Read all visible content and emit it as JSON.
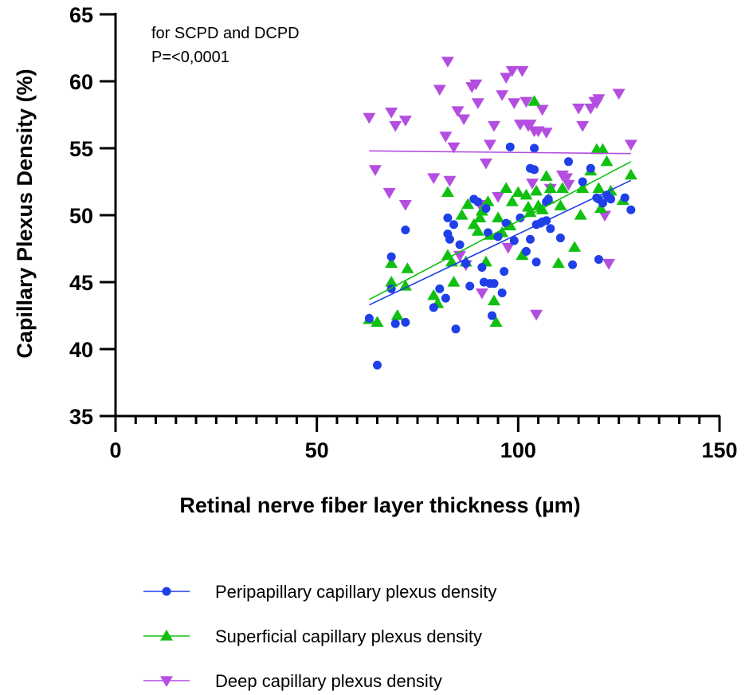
{
  "chart_data": {
    "type": "scatter",
    "title": "",
    "xlabel": "Retinal nerve fiber layer thickness (µm)",
    "ylabel": "Capillary Plexus Density (%)",
    "xlim": [
      0,
      150
    ],
    "ylim": [
      35,
      65
    ],
    "xticks": [
      0,
      50,
      100,
      150
    ],
    "yticks": [
      35,
      40,
      45,
      50,
      55,
      60,
      65
    ],
    "grid": false,
    "legend_position": "bottom",
    "annotations": [
      "for SCPD and DCPD",
      "P=<0,0001"
    ],
    "series": [
      {
        "name": "Peripapillary capillary plexus density",
        "marker": "circle",
        "color": "#1f3fe8",
        "fit": [
          [
            63,
            43.3
          ],
          [
            128,
            52.6
          ]
        ],
        "points": [
          [
            63,
            42.3
          ],
          [
            65,
            38.8
          ],
          [
            68.5,
            46.9
          ],
          [
            68.5,
            44.5
          ],
          [
            69.5,
            41.9
          ],
          [
            72,
            48.9
          ],
          [
            72,
            42
          ],
          [
            79,
            43.1
          ],
          [
            80.5,
            44.5
          ],
          [
            82,
            43.8
          ],
          [
            82.5,
            48.6
          ],
          [
            82.5,
            49.8
          ],
          [
            83,
            48.2
          ],
          [
            84,
            49.3
          ],
          [
            84.5,
            41.5
          ],
          [
            85.5,
            47.8
          ],
          [
            87,
            46.4
          ],
          [
            88,
            44.7
          ],
          [
            89,
            51.2
          ],
          [
            90,
            51
          ],
          [
            91,
            46.1
          ],
          [
            91.5,
            45
          ],
          [
            92,
            50.5
          ],
          [
            92.5,
            48.7
          ],
          [
            93,
            44.9
          ],
          [
            93.5,
            42.5
          ],
          [
            94,
            44.9
          ],
          [
            95,
            48.4
          ],
          [
            96,
            44.2
          ],
          [
            96.5,
            45.8
          ],
          [
            97,
            49.4
          ],
          [
            98,
            55.1
          ],
          [
            99,
            48.1
          ],
          [
            100.5,
            49.8
          ],
          [
            102,
            47.3
          ],
          [
            103,
            48.2
          ],
          [
            103,
            53.5
          ],
          [
            104,
            55
          ],
          [
            104,
            53.4
          ],
          [
            104.5,
            46.5
          ],
          [
            104.5,
            49.3
          ],
          [
            105.5,
            49.4
          ],
          [
            106,
            49.5
          ],
          [
            107,
            49.6
          ],
          [
            107,
            51
          ],
          [
            107.5,
            51.2
          ],
          [
            108,
            49
          ],
          [
            110.5,
            48.3
          ],
          [
            112.5,
            54
          ],
          [
            113.5,
            46.3
          ],
          [
            116,
            52.5
          ],
          [
            118,
            53.5
          ],
          [
            119.5,
            51.3
          ],
          [
            120,
            51.2
          ],
          [
            120,
            46.7
          ],
          [
            121,
            50.9
          ],
          [
            122,
            51.5
          ],
          [
            122.5,
            51.3
          ],
          [
            123,
            51.2
          ],
          [
            126.5,
            51.3
          ],
          [
            128,
            50.4
          ]
        ]
      },
      {
        "name": "Superficial capillary plexus density",
        "marker": "triangle-up",
        "color": "#10c010",
        "fit": [
          [
            63,
            43.7
          ],
          [
            128,
            54.0
          ]
        ],
        "points": [
          [
            63,
            42.2
          ],
          [
            65,
            42
          ],
          [
            68.5,
            46.4
          ],
          [
            68.5,
            45
          ],
          [
            70,
            42.5
          ],
          [
            72.5,
            46
          ],
          [
            72,
            44.7
          ],
          [
            79,
            44
          ],
          [
            80,
            43.4
          ],
          [
            82.5,
            51.7
          ],
          [
            82.5,
            47
          ],
          [
            83.5,
            46.5
          ],
          [
            84,
            45
          ],
          [
            86,
            50
          ],
          [
            87,
            46.5
          ],
          [
            87.5,
            50.8
          ],
          [
            89,
            49.3
          ],
          [
            90,
            48.8
          ],
          [
            90.5,
            49.8
          ],
          [
            91,
            50.3
          ],
          [
            92,
            46.5
          ],
          [
            92.5,
            51
          ],
          [
            93,
            48.5
          ],
          [
            94,
            43.6
          ],
          [
            94.5,
            42
          ],
          [
            95,
            49.8
          ],
          [
            96,
            48.7
          ],
          [
            97,
            52
          ],
          [
            98,
            49.2
          ],
          [
            98.5,
            51
          ],
          [
            100,
            51.7
          ],
          [
            101,
            47
          ],
          [
            102,
            51.5
          ],
          [
            102.5,
            50.6
          ],
          [
            103,
            50.2
          ],
          [
            104,
            58.5
          ],
          [
            104.5,
            51.8
          ],
          [
            105,
            50.7
          ],
          [
            106,
            50.4
          ],
          [
            107,
            52.9
          ],
          [
            107.5,
            51.2
          ],
          [
            108,
            52
          ],
          [
            110,
            46.4
          ],
          [
            110.5,
            50.7
          ],
          [
            111,
            52
          ],
          [
            114,
            47.6
          ],
          [
            115.5,
            50
          ],
          [
            116,
            52
          ],
          [
            118,
            53.3
          ],
          [
            119.5,
            54.9
          ],
          [
            120,
            52
          ],
          [
            120.5,
            50.5
          ],
          [
            121,
            54.9
          ],
          [
            122,
            54
          ],
          [
            123,
            51.8
          ],
          [
            126,
            51.1
          ],
          [
            128,
            53
          ]
        ]
      },
      {
        "name": "Deep capillary plexus density",
        "marker": "triangle-down",
        "color": "#b44ee0",
        "fit": [
          [
            63,
            54.8
          ],
          [
            128,
            54.6
          ]
        ],
        "points": [
          [
            63,
            57.3
          ],
          [
            64.5,
            53.4
          ],
          [
            68,
            51.7
          ],
          [
            68.5,
            57.7
          ],
          [
            69.5,
            56.7
          ],
          [
            72,
            57.1
          ],
          [
            72,
            50.8
          ],
          [
            79,
            52.8
          ],
          [
            80.5,
            59.4
          ],
          [
            82,
            55.9
          ],
          [
            82.5,
            61.5
          ],
          [
            83,
            52.6
          ],
          [
            84,
            55.1
          ],
          [
            85,
            57.8
          ],
          [
            85.5,
            47
          ],
          [
            86.5,
            57.2
          ],
          [
            87,
            46.3
          ],
          [
            88.5,
            59.6
          ],
          [
            89.5,
            59.8
          ],
          [
            90,
            58.4
          ],
          [
            90.5,
            50.8
          ],
          [
            91,
            44.2
          ],
          [
            92,
            53.9
          ],
          [
            93,
            55.3
          ],
          [
            94,
            56.7
          ],
          [
            95,
            51.4
          ],
          [
            96,
            59
          ],
          [
            97,
            60.3
          ],
          [
            97.5,
            47.6
          ],
          [
            98.5,
            60.8
          ],
          [
            99,
            58.4
          ],
          [
            100.5,
            56.8
          ],
          [
            101,
            60.8
          ],
          [
            102,
            58.5
          ],
          [
            102.5,
            56.7
          ],
          [
            103,
            56.8
          ],
          [
            103.5,
            52.4
          ],
          [
            104,
            56.3
          ],
          [
            104.5,
            42.6
          ],
          [
            105,
            56.3
          ],
          [
            106,
            57.9
          ],
          [
            107,
            56.2
          ],
          [
            108,
            52
          ],
          [
            111,
            53
          ],
          [
            112,
            52.8
          ],
          [
            112.5,
            52.3
          ],
          [
            115,
            58
          ],
          [
            116,
            56.7
          ],
          [
            118,
            58
          ],
          [
            119,
            58.5
          ],
          [
            119.5,
            58.4
          ],
          [
            120,
            58.7
          ],
          [
            121.5,
            50
          ],
          [
            122.5,
            46.4
          ],
          [
            125,
            59.1
          ],
          [
            128,
            55.3
          ]
        ]
      }
    ]
  }
}
